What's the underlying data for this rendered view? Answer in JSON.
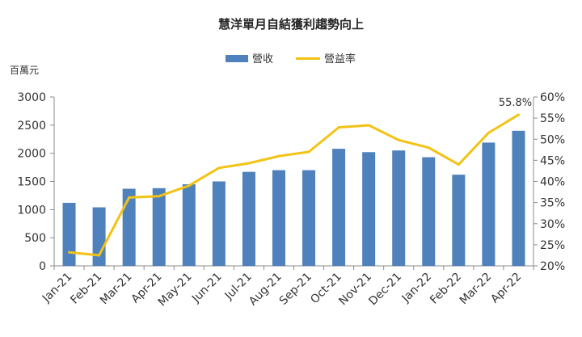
{
  "chart_data": {
    "type": "bar+line",
    "title": "慧洋單月自結獲利趨勢向上",
    "y_left_unit": "百萬元",
    "categories": [
      "Jan-21",
      "Feb-21",
      "Mar-21",
      "Apr-21",
      "May-21",
      "Jun-21",
      "Jul-21",
      "Aug-21",
      "Sep-21",
      "Oct-21",
      "Nov-21",
      "Dec-21",
      "Jan-22",
      "Feb-22",
      "Mar-22",
      "Apr-22"
    ],
    "series": [
      {
        "name": "營收",
        "type": "bar",
        "axis": "left",
        "color": "#4F81BD",
        "values": [
          1120,
          1040,
          1370,
          1380,
          1450,
          1500,
          1670,
          1700,
          1700,
          2080,
          2020,
          2050,
          1930,
          1620,
          2190,
          2400
        ]
      },
      {
        "name": "營益率",
        "type": "line",
        "axis": "right",
        "color": "#F2C314",
        "values": [
          23.2,
          22.5,
          36.2,
          36.5,
          39.0,
          43.2,
          44.3,
          46.0,
          47.0,
          52.8,
          53.3,
          49.8,
          48.0,
          44.0,
          51.5,
          55.8
        ]
      }
    ],
    "y_left": {
      "min": 0,
      "max": 3000,
      "step": 500,
      "ticks": [
        "0",
        "500",
        "1000",
        "1500",
        "2000",
        "2500",
        "3000"
      ]
    },
    "y_right": {
      "min": 20,
      "max": 60,
      "step": 5,
      "ticks": [
        "20%",
        "25%",
        "30%",
        "35%",
        "40%",
        "45%",
        "50%",
        "55%",
        "60%"
      ]
    },
    "annotation": {
      "series": "營益率",
      "index": 15,
      "text": "55.8%"
    },
    "legend_position": "top",
    "grid": false
  }
}
